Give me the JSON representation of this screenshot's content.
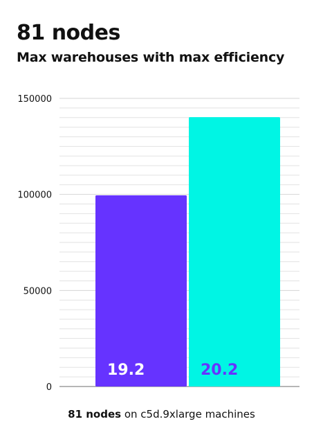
{
  "title": "81 nodes",
  "subtitle": "Max warehouses with max efficiency",
  "footer": {
    "bold": "81 nodes",
    "rest": " on c5d.9xlarge machines"
  },
  "colors": {
    "series1": "#6633ff",
    "series2": "#00f5e4",
    "label1": "#ffffff",
    "label2": "#6633ff",
    "grid": "#e2e2e2",
    "axis": "#9e9e9e"
  },
  "chart_data": {
    "type": "bar",
    "categories": [
      "81 nodes on c5d.9xlarge machines"
    ],
    "series": [
      {
        "values": [
          99500
        ],
        "data_label": "19.2"
      },
      {
        "values": [
          140200
        ],
        "data_label": "20.2"
      }
    ],
    "yticks": [
      "0",
      "50000",
      "100000",
      "150000"
    ],
    "ylim": [
      0,
      150000
    ],
    "grid": true,
    "xlabel": "",
    "ylabel": ""
  }
}
